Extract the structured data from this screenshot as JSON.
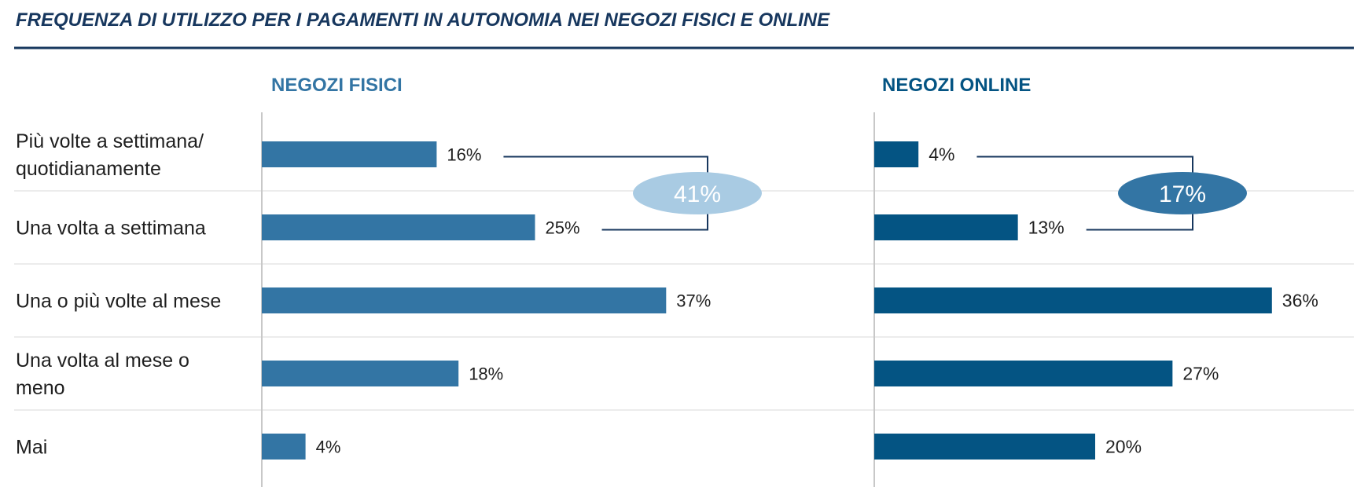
{
  "title": "FREQUENZA DI UTILIZZO PER I PAGAMENTI IN AUTONOMIA NEI NEGOZI FISICI E ONLINE",
  "colors": {
    "title": "#17375e",
    "rule": "#17375e",
    "physical_bar": "#3375a4",
    "online_bar": "#045483",
    "physical_badge": "#a9cbe3",
    "online_badge": "#3375a4",
    "grid": "#e6e6e6",
    "axis": "#c8c8c8",
    "bracket": "#17375e"
  },
  "chart_data": [
    {
      "type": "bar",
      "orientation": "horizontal",
      "title": "NEGOZI FISICI",
      "categories": [
        [
          "Più volte a settimana/",
          "quotidianamente"
        ],
        [
          "Una volta a settimana"
        ],
        [
          "Una o più volte al mese"
        ],
        [
          "Una volta al mese o",
          "meno"
        ],
        [
          "Mai"
        ]
      ],
      "values": [
        16,
        25,
        37,
        18,
        4
      ],
      "labels": [
        "16%",
        "25%",
        "37%",
        "18%",
        "4%"
      ],
      "grid": false,
      "legend": "none",
      "annotation": {
        "label": "41%",
        "covers": [
          0,
          1
        ]
      }
    },
    {
      "type": "bar",
      "orientation": "horizontal",
      "title": "NEGOZI ONLINE",
      "categories": [
        [
          "Più volte a settimana/",
          "quotidianamente"
        ],
        [
          "Una volta a settimana"
        ],
        [
          "Una o più volte al mese"
        ],
        [
          "Una volta al mese o",
          "meno"
        ],
        [
          "Mai"
        ]
      ],
      "values": [
        4,
        13,
        36,
        27,
        20
      ],
      "labels": [
        "4%",
        "13%",
        "36%",
        "27%",
        "20%"
      ],
      "grid": false,
      "legend": "none",
      "annotation": {
        "label": "17%",
        "covers": [
          0,
          1
        ]
      }
    }
  ]
}
